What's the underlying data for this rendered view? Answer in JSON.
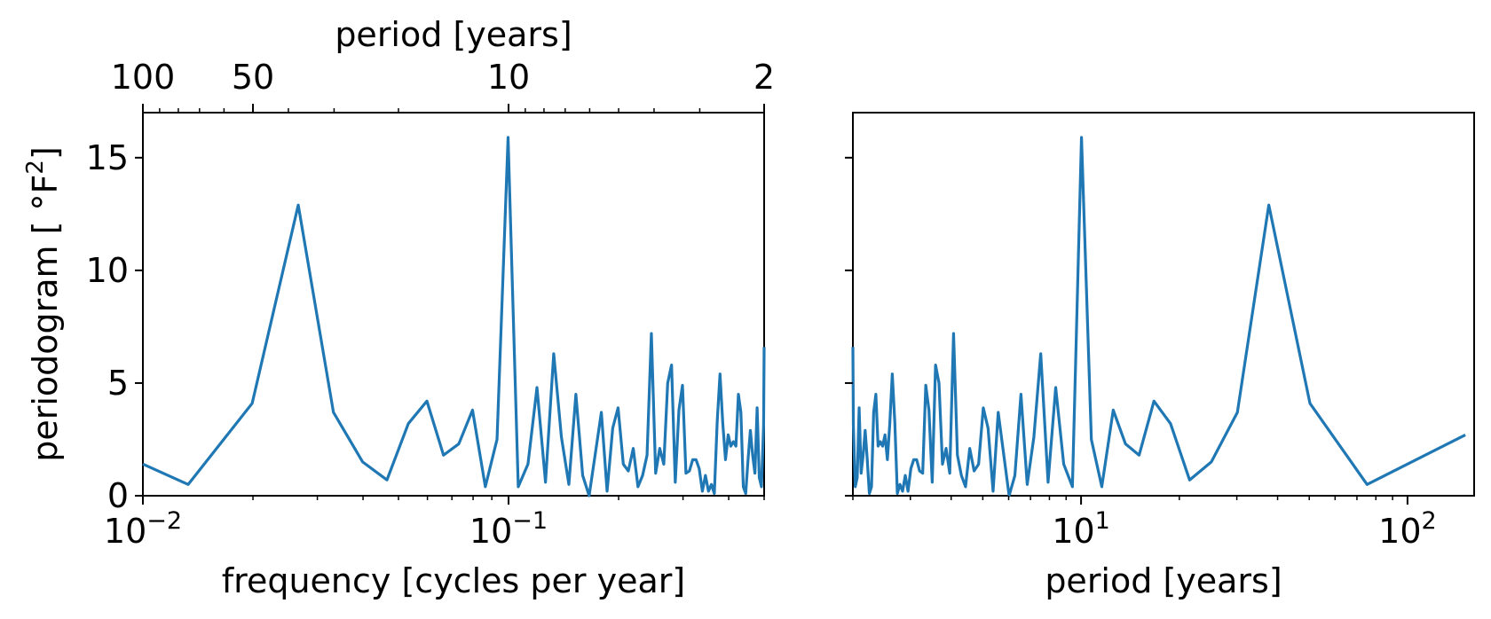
{
  "chart_data": [
    {
      "type": "line",
      "xscale": "log",
      "xlabel": "frequency [cycles per year]",
      "ylabel": "periodogram [ $^\\circ$F$^2$]",
      "ylabel_text": "periodogram [ °F",
      "ylabel_sup": "2",
      "ylabel_close": "]",
      "xlim": [
        0.01,
        0.5
      ],
      "ylim": [
        0,
        17
      ],
      "xticks": [
        {
          "base": "10",
          "exp": "−2"
        },
        {
          "base": "10",
          "exp": "−1"
        }
      ],
      "yticks": [
        "0",
        "5",
        "10",
        "15"
      ],
      "secondary_xaxis": {
        "label": "period [years]",
        "ticks": [
          "100",
          "50",
          "10",
          "2"
        ]
      },
      "color": "#1f77b4",
      "series": [
        {
          "x": [
            0.00665,
            0.0133,
            0.0199,
            0.0266,
            0.0332,
            0.0399,
            0.0465,
            0.0532,
            0.0598,
            0.0664,
            0.0731,
            0.0797,
            0.0864,
            0.093,
            0.0997,
            0.1063,
            0.113,
            0.1196,
            0.1262,
            0.1329,
            0.1395,
            0.1462,
            0.1528,
            0.1595,
            0.1661,
            0.1728,
            0.1794,
            0.186,
            0.1927,
            0.1993,
            0.206,
            0.2126,
            0.2193,
            0.2259,
            0.2326,
            0.2392,
            0.2458,
            0.2525,
            0.2591,
            0.2658,
            0.2724,
            0.2791,
            0.2857,
            0.2924,
            0.299,
            0.3056,
            0.3123,
            0.3189,
            0.3256,
            0.3322,
            0.3389,
            0.3455,
            0.3522,
            0.3588,
            0.3654,
            0.3721,
            0.3787,
            0.3854,
            0.392,
            0.3987,
            0.4053,
            0.412,
            0.4186,
            0.4252,
            0.4319,
            0.4385,
            0.4452,
            0.4518,
            0.4585,
            0.4651,
            0.4718,
            0.4784,
            0.485,
            0.4917,
            0.4983,
            0.5
          ],
          "y": [
            2.7,
            0.5,
            4.1,
            12.9,
            3.7,
            1.5,
            0.7,
            3.2,
            4.2,
            1.8,
            2.3,
            3.8,
            0.4,
            2.5,
            15.9,
            0.4,
            1.4,
            4.8,
            0.6,
            6.3,
            2.6,
            0.5,
            4.5,
            0.9,
            0.0,
            1.9,
            3.7,
            0.2,
            3.0,
            3.9,
            1.4,
            1.1,
            2.1,
            0.4,
            0.9,
            1.8,
            7.2,
            1.0,
            2.1,
            1.4,
            5.0,
            5.8,
            0.6,
            3.8,
            4.9,
            1.0,
            1.1,
            1.6,
            1.6,
            1.2,
            0.2,
            0.9,
            0.2,
            0.5,
            0.1,
            3.3,
            5.4,
            3.2,
            1.6,
            2.7,
            2.2,
            2.4,
            2.2,
            4.5,
            3.7,
            0.4,
            0.1,
            1.6,
            2.9,
            1.8,
            1.0,
            3.9,
            0.8,
            0.4,
            3.1,
            6.6
          ]
        }
      ]
    },
    {
      "type": "line",
      "xscale": "log",
      "xlabel": "period [years]",
      "xlim": [
        2,
        160
      ],
      "ylim": [
        0,
        17
      ],
      "xticks": [
        {
          "base": "10",
          "exp": "1"
        },
        {
          "base": "10",
          "exp": "2"
        }
      ],
      "color": "#1f77b4",
      "series": [
        {
          "note_x_is_period_of_left_panel": true,
          "x": [],
          "y": []
        }
      ]
    }
  ]
}
